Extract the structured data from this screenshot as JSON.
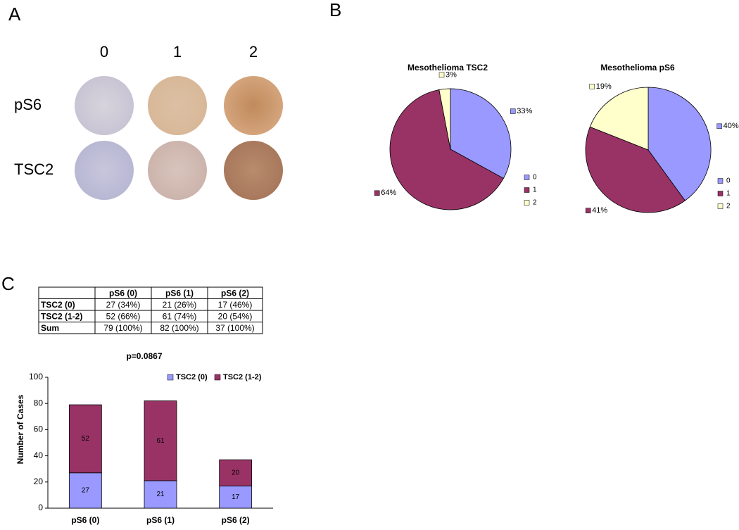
{
  "panel_labels": [
    "A",
    "B",
    "C"
  ],
  "ihc": {
    "columns": [
      "0",
      "1",
      "2"
    ],
    "rows": [
      "pS6",
      "TSC2"
    ]
  },
  "table": {
    "header": [
      "pS6 (0)",
      "pS6 (1)",
      "pS6 (2)"
    ],
    "rows": [
      [
        "TSC2 (0)",
        "27 (34%)",
        "21 (26%)",
        "17 (46%)"
      ],
      [
        "TSC2 (1-2)",
        "52 (66%)",
        "61 (74%)",
        "20 (54%)"
      ],
      [
        "Sum",
        "79 (100%)",
        "82 (100%)",
        "37 (100%)"
      ]
    ]
  },
  "chart_data": [
    {
      "type": "pie",
      "title": "Mesothelioma TSC2",
      "categories": [
        "0",
        "1",
        "2"
      ],
      "values": [
        33,
        64,
        3
      ],
      "value_labels": [
        "33%",
        "64%",
        "3%"
      ],
      "colors": [
        "#9999ff",
        "#993366",
        "#ffffcc"
      ],
      "legend": "right"
    },
    {
      "type": "pie",
      "title": "Mesothelioma pS6",
      "categories": [
        "0",
        "1",
        "2"
      ],
      "values": [
        40,
        41,
        19
      ],
      "value_labels": [
        "40%",
        "41%",
        "19%"
      ],
      "colors": [
        "#9999ff",
        "#993366",
        "#ffffcc"
      ],
      "legend": "right"
    },
    {
      "type": "bar",
      "stacked": true,
      "title": "p=0.0867",
      "y_label": "Number of Cases",
      "categories": [
        "pS6 (0)",
        "pS6 (1)",
        "pS6 (2)"
      ],
      "series": [
        {
          "name": "TSC2 (0)",
          "color": "#9999ff",
          "values": [
            27,
            21,
            17
          ]
        },
        {
          "name": "TSC2 (1-2)",
          "color": "#993366",
          "values": [
            52,
            61,
            20
          ]
        }
      ],
      "ylim": [
        0,
        100
      ],
      "yticks": [
        0,
        20,
        40,
        60,
        80,
        100
      ],
      "legend": "top-right"
    }
  ]
}
